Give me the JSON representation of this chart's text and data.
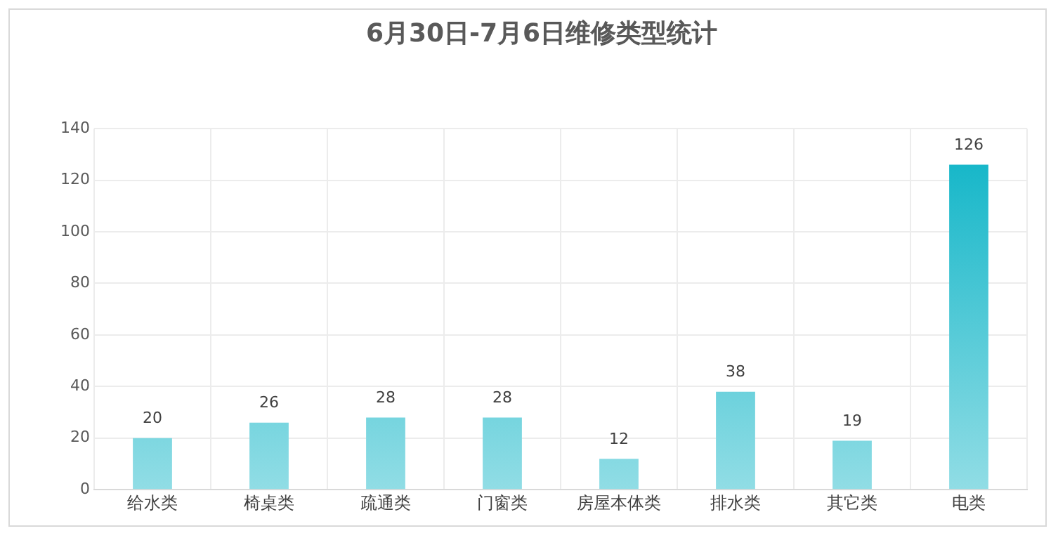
{
  "chart_data": {
    "type": "bar",
    "title": "6月30日-7月6日维修类型统计",
    "categories": [
      "给水类",
      "椅桌类",
      "疏通类",
      "门窗类",
      "房屋本体类",
      "排水类",
      "其它类",
      "电类"
    ],
    "values": [
      20,
      26,
      28,
      28,
      12,
      38,
      19,
      126
    ],
    "color": "#0ab3c6",
    "ylim": [
      0,
      140
    ],
    "yticks": [
      0,
      20,
      40,
      60,
      80,
      100,
      120,
      140
    ],
    "grid": true,
    "data_labels": true
  }
}
